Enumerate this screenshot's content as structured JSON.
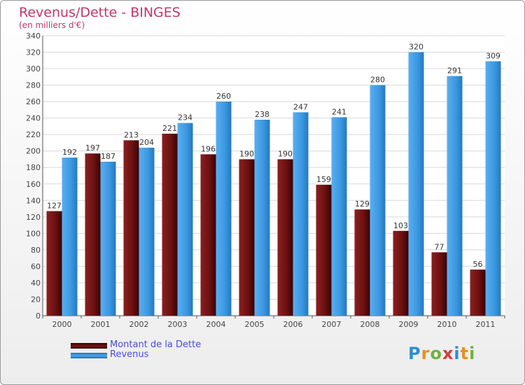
{
  "chart_data": {
    "type": "bar",
    "title": "Revenus/Dette - BINGES",
    "subtitle": "(en milliers d'€)",
    "categories": [
      "2000",
      "2001",
      "2002",
      "2003",
      "2004",
      "2005",
      "2006",
      "2007",
      "2008",
      "2009",
      "2010",
      "2011"
    ],
    "series": [
      {
        "name": "Montant de la Dette",
        "values": [
          127,
          197,
          213,
          221,
          196,
          190,
          190,
          159,
          129,
          103,
          77,
          56
        ],
        "color": "#7a1414"
      },
      {
        "name": "Revenus",
        "values": [
          192,
          187,
          204,
          234,
          260,
          238,
          247,
          241,
          280,
          320,
          291,
          309
        ],
        "color": "#3a97e0"
      }
    ],
    "ylim": [
      0,
      340
    ],
    "yticks": [
      0,
      20,
      40,
      60,
      80,
      100,
      120,
      140,
      160,
      180,
      200,
      220,
      240,
      260,
      280,
      300,
      320,
      340
    ],
    "grid": true,
    "legend_position": "bottom-left"
  },
  "logo_text": "Proxiti"
}
